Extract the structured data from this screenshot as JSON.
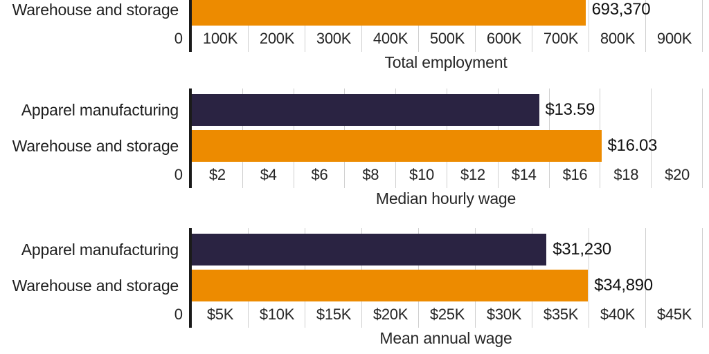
{
  "page": {
    "background": "#ffffff"
  },
  "palette": {
    "orange": "#ED8B00",
    "dark_navy": "#2A2342",
    "grid_line": "#CFCFCF",
    "axis_line": "#1A1A1A",
    "text": "#1A1A1A"
  },
  "chart_data": [
    {
      "type": "bar",
      "orientation": "horizontal",
      "xlabel": "Total employment",
      "xlim": [
        0,
        900000
      ],
      "grid": true,
      "clipped_at_top": true,
      "zero_tick_label": "0",
      "interval_tick_labels": [
        "100K",
        "200K",
        "300K",
        "400K",
        "500K",
        "600K",
        "700K",
        "800K",
        "900K"
      ],
      "categories": [
        "Warehouse and storage"
      ],
      "values": [
        693370
      ],
      "value_labels": [
        "693,370"
      ],
      "bar_colors": [
        "#ED8B00"
      ]
    },
    {
      "type": "bar",
      "orientation": "horizontal",
      "xlabel": "Median hourly wage",
      "xlim": [
        0,
        20
      ],
      "grid": true,
      "clipped_at_top": false,
      "zero_tick_label": "0",
      "interval_tick_labels": [
        "$2",
        "$4",
        "$6",
        "$8",
        "$10",
        "$12",
        "$14",
        "$16",
        "$18",
        "$20"
      ],
      "categories": [
        "Apparel manufacturing",
        "Warehouse and storage"
      ],
      "values": [
        13.59,
        16.03
      ],
      "value_labels": [
        "$13.59",
        "$16.03"
      ],
      "bar_colors": [
        "#2A2342",
        "#ED8B00"
      ]
    },
    {
      "type": "bar",
      "orientation": "horizontal",
      "xlabel": "Mean annual wage",
      "xlim": [
        0,
        45000
      ],
      "grid": true,
      "clipped_at_top": false,
      "zero_tick_label": "0",
      "interval_tick_labels": [
        "$5K",
        "$10K",
        "$15K",
        "$20K",
        "$25K",
        "$30K",
        "$35K",
        "$40K",
        "$45K"
      ],
      "categories": [
        "Apparel manufacturing",
        "Warehouse and storage"
      ],
      "values": [
        31230,
        34890
      ],
      "value_labels": [
        "$31,230",
        "$34,890"
      ],
      "bar_colors": [
        "#2A2342",
        "#ED8B00"
      ]
    }
  ]
}
